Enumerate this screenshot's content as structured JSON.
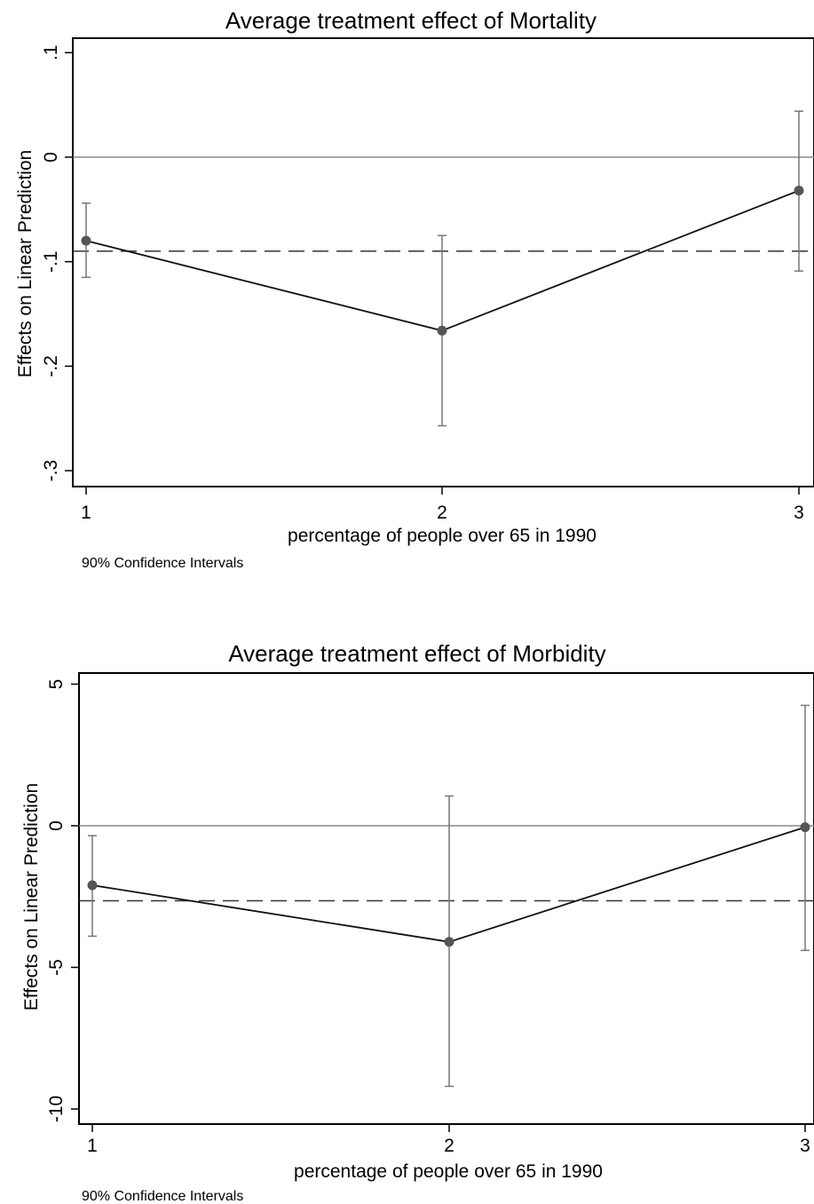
{
  "chart_data": [
    {
      "type": "line",
      "title": "Average treatment effect of Mortality",
      "xlabel": "percentage of people over 65 in 1990",
      "ylabel": "Effects on Linear Prediction",
      "note": "90% Confidence Intervals",
      "x": [
        1,
        2,
        3
      ],
      "x_ticks": [
        "1",
        "2",
        "3"
      ],
      "y_ticks": [
        "-.3",
        "-.2",
        "-.1",
        "0",
        ".1"
      ],
      "y_tick_values": [
        -0.3,
        -0.2,
        -0.1,
        0,
        0.1
      ],
      "ylim": [
        -0.315,
        0.112
      ],
      "series": [
        {
          "values": [
            -0.08,
            -0.166,
            -0.032
          ],
          "ci_lower": [
            -0.115,
            -0.257,
            -0.109
          ],
          "ci_upper": [
            -0.044,
            -0.075,
            0.044
          ]
        }
      ],
      "reference_lines": [
        {
          "style": "solid",
          "y": 0
        },
        {
          "style": "dashed",
          "y": -0.09
        }
      ],
      "grid": false,
      "colors": {
        "line": "#111111",
        "marker": "#555555",
        "ci": "#777777",
        "zero_line": "#888888",
        "dashed_line": "#333333"
      }
    },
    {
      "type": "line",
      "title": "Average treatment effect of Morbidity",
      "xlabel": "percentage of people over 65 in 1990",
      "ylabel": "Effects on Linear Prediction",
      "note": "90% Confidence Intervals",
      "x": [
        1,
        2,
        3
      ],
      "x_ticks": [
        "1",
        "2",
        "3"
      ],
      "y_ticks": [
        "-10",
        "-5",
        "0",
        "5"
      ],
      "y_tick_values": [
        -10,
        -5,
        0,
        5
      ],
      "ylim": [
        -10.5,
        5.4
      ],
      "series": [
        {
          "values": [
            -2.1,
            -4.1,
            -0.05
          ],
          "ci_lower": [
            -3.9,
            -9.2,
            -4.4
          ],
          "ci_upper": [
            -0.35,
            1.05,
            4.25
          ]
        }
      ],
      "reference_lines": [
        {
          "style": "solid",
          "y": 0
        },
        {
          "style": "dashed",
          "y": -2.65
        }
      ],
      "grid": false,
      "colors": {
        "line": "#111111",
        "marker": "#555555",
        "ci": "#777777",
        "zero_line": "#888888",
        "dashed_line": "#333333"
      }
    }
  ]
}
